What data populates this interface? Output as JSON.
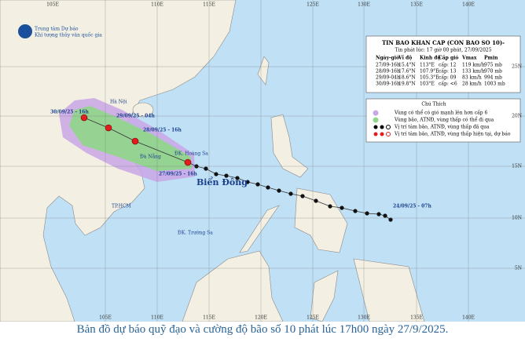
{
  "header": {
    "org": "Trung tâm Dự báo",
    "org2": "Khí tượng thủy văn quốc gia"
  },
  "info": {
    "title": "TIN BAO KHAN CAP (CON BAO SO 10)-",
    "issued": "Tin phát lúc: 17 giờ 00 phút, 27/09/2025",
    "columns": [
      "Ngày-giờ",
      "Vĩ độ",
      "Kinh độ",
      "Cấp gió",
      "Vmax",
      "Pmin"
    ],
    "rows": [
      [
        "27/09-16h",
        "15.4°N",
        "113°E",
        "cấp: 12",
        "119 km/h",
        "975 mb"
      ],
      [
        "28/09-16h",
        "17.6°N",
        "107.9°E",
        "cấp: 13",
        "133 km/h",
        "970 mb"
      ],
      [
        "29/09-04h",
        "18.6°N",
        "105.3°E",
        "cấp: 09",
        "83 km/h",
        "994 mb"
      ],
      [
        "30/09-16h",
        "19.8°N",
        "103°E",
        "cấp: <6",
        "28 km/h",
        "1003 mb"
      ]
    ]
  },
  "legend": {
    "title": "Chú Thích",
    "items": [
      "Vùng có thể có gió mạnh lên hơn cấp 6",
      "Vùng bão, ATNĐ, vùng thấp có thể đi qua",
      "Vị trí tâm bão, ATNĐ, vùng thấp đã qua",
      "Vị trí tâm bão, ATNĐ, vùng thấp hiện tại, dự báo"
    ]
  },
  "places": [
    "Hà Nội",
    "Đà Nẵng",
    "TP.HCM",
    "ĐK. Hoàng Sa",
    "ĐK. Trường Sa",
    "Biển Đông"
  ],
  "track_labels": [
    "30/09/25 - 16h",
    "29/09/25 - 04h",
    "28/09/25 - 16h",
    "27/09/25 - 16h",
    "24/09/25 - 07h"
  ],
  "lon_top": [
    "105E",
    "110E",
    "115E",
    "125E",
    "130E",
    "135E",
    "140E"
  ],
  "lon_bottom": [
    "105E",
    "110E",
    "115E",
    "120E",
    "125E",
    "130E",
    "135E",
    "140E"
  ],
  "lat": [
    "25N",
    "20N",
    "15N",
    "10N",
    "5N"
  ],
  "caption": "Bản đồ dự báo quỹ đạo và cường độ bão số 10 phát lúc 17h00 ngày 27/9/2025."
}
